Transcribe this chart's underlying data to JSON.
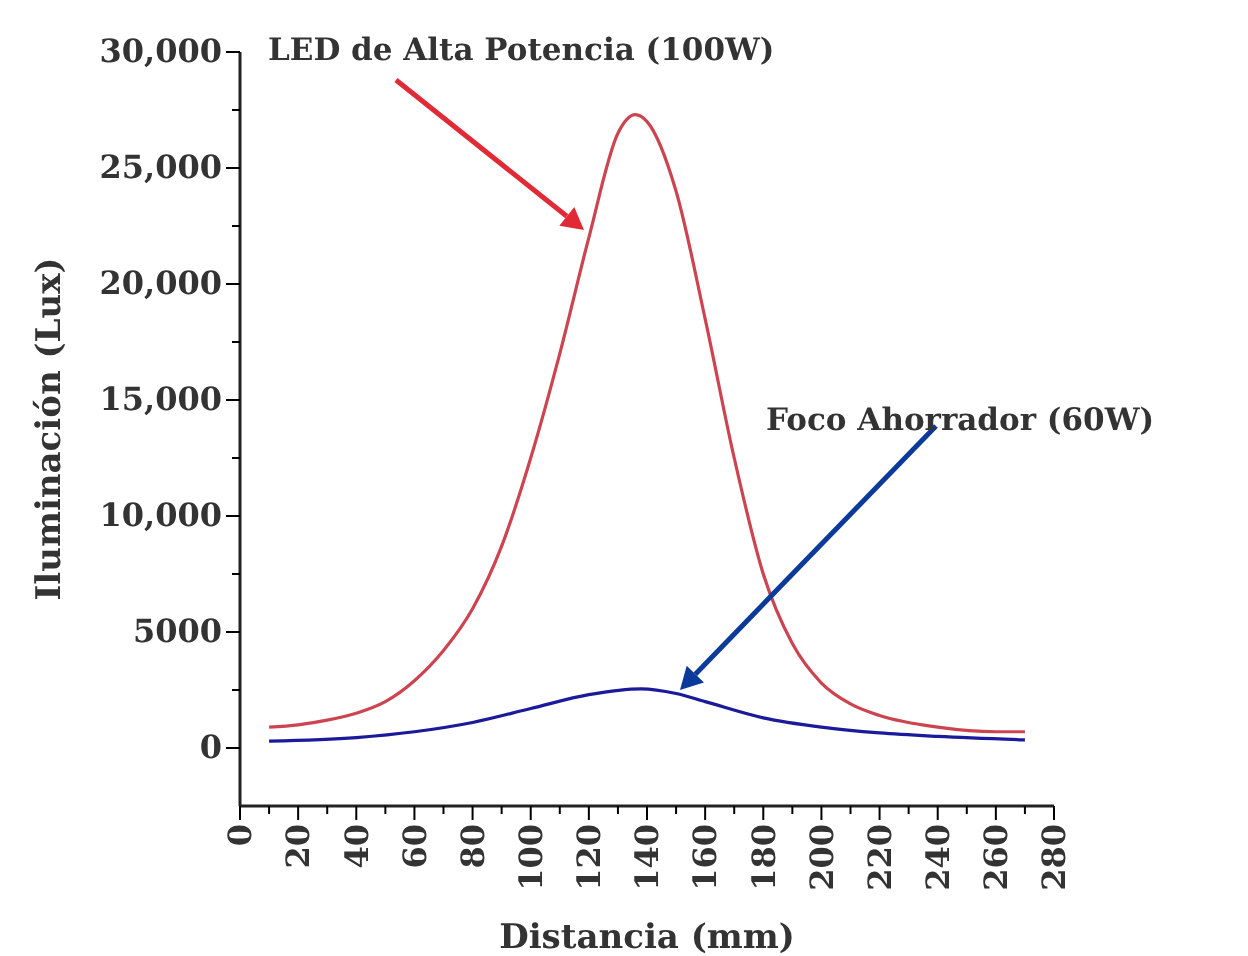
{
  "chart_data": {
    "type": "line",
    "xlabel": "Distancia (mm)",
    "ylabel": "Iluminación (Lux)",
    "xlim": [
      0,
      280
    ],
    "ylim": [
      -2500,
      30000
    ],
    "xticks": [
      0,
      {
        "value": 10,
        "label": null
      },
      20,
      {
        "value": 30,
        "label": null
      },
      40,
      {
        "value": 50,
        "label": null
      },
      60,
      {
        "value": 70,
        "label": null
      },
      80,
      {
        "value": 90,
        "label": null
      },
      100,
      {
        "value": 110,
        "label": null
      },
      120,
      {
        "value": 130,
        "label": null
      },
      140,
      {
        "value": 150,
        "label": null
      },
      160,
      {
        "value": 170,
        "label": null
      },
      180,
      {
        "value": 190,
        "label": null
      },
      200,
      {
        "value": 210,
        "label": null
      },
      220,
      {
        "value": 230,
        "label": null
      },
      240,
      {
        "value": 250,
        "label": null
      },
      260,
      {
        "value": 270,
        "label": null
      },
      280
    ],
    "yticks": [
      0,
      {
        "value": 2500,
        "label": null
      },
      5000,
      {
        "value": 7500,
        "label": null
      },
      {
        "value": 10000,
        "label": "10,000"
      },
      {
        "value": 12500,
        "label": null
      },
      {
        "value": 15000,
        "label": "15,000"
      },
      {
        "value": 17500,
        "label": null
      },
      {
        "value": 20000,
        "label": "20,000"
      },
      {
        "value": 22500,
        "label": null
      },
      {
        "value": 25000,
        "label": "25,000"
      },
      {
        "value": 27500,
        "label": null
      },
      {
        "value": 30000,
        "label": "30,000"
      }
    ],
    "grid": false,
    "marker": "none",
    "line_style": "solid",
    "series": [
      {
        "color": "#cc4450",
        "x": [
          10,
          20,
          30,
          40,
          50,
          60,
          70,
          80,
          90,
          100,
          110,
          120,
          130,
          136,
          140,
          150,
          160,
          170,
          180,
          190,
          200,
          210,
          220,
          240,
          260,
          270
        ],
        "values": [
          900,
          1000,
          1200,
          1500,
          2000,
          2900,
          4200,
          6000,
          8700,
          12500,
          17000,
          22000,
          26500,
          27300,
          27000,
          24000,
          18500,
          12500,
          7500,
          4500,
          2800,
          1900,
          1400,
          900,
          700,
          700
        ]
      },
      {
        "color": "#1a1a9a",
        "x": [
          10,
          40,
          60,
          80,
          100,
          120,
          138,
          150,
          160,
          180,
          200,
          220,
          240,
          270
        ],
        "values": [
          300,
          450,
          700,
          1100,
          1700,
          2300,
          2550,
          2350,
          2000,
          1300,
          900,
          650,
          500,
          350
        ]
      }
    ],
    "annotations": [
      "LED de Alta Potencia (100W)",
      "Foco Ahorrador (60W)"
    ]
  }
}
